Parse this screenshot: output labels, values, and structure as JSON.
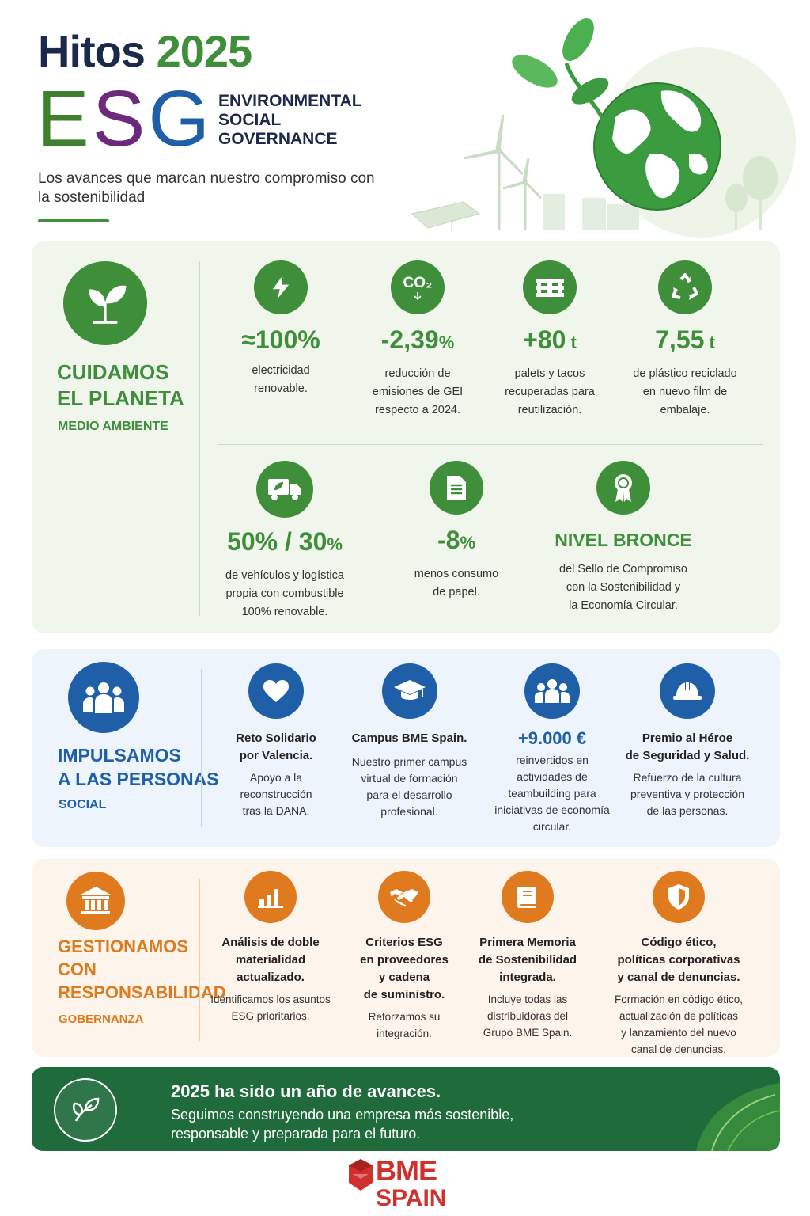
{
  "header": {
    "title_part1": "Hitos",
    "title_part2": "2025",
    "esg_e": "E",
    "esg_s": "S",
    "esg_g": "G",
    "esg_words": [
      "ENVIRONMENTAL",
      "SOCIAL",
      "GOVERNANCE"
    ],
    "subtitle": "Los avances que marcan nuestro compromiso con la sostenibilidad"
  },
  "environment": {
    "title_line1": "CUIDAMOS",
    "title_line2": "EL PLANETA",
    "subtitle": "MEDIO AMBIENTE",
    "icon": "plant-icon",
    "color": "#3e8e3a",
    "items": [
      {
        "value": "≈100%",
        "unit": "",
        "desc": [
          "electricidad",
          "renovable."
        ],
        "icon": "lightning-icon"
      },
      {
        "value": "-2,39",
        "unit": "%",
        "desc": [
          "reducción de",
          "emisiones de GEI",
          "respecto a 2024."
        ],
        "icon": "co2-icon",
        "icon_text": "CO₂"
      },
      {
        "value": "+80",
        "unit": " t",
        "desc": [
          "palets y tacos",
          "recuperadas para",
          "reutilización."
        ],
        "icon": "pallet-icon"
      },
      {
        "value": "7,55",
        "unit": " t",
        "desc": [
          "de plástico reciclado",
          "en nuevo film de",
          "embalaje."
        ],
        "icon": "recycle-icon"
      },
      {
        "value": "50% / 30",
        "unit": "%",
        "desc": [
          "de vehículos y logística",
          "propia con combustible",
          "100% renovable."
        ],
        "icon": "truck-icon"
      },
      {
        "value": "-8",
        "unit": "%",
        "desc": [
          "menos consumo",
          "de papel."
        ],
        "icon": "document-icon"
      },
      {
        "value": "NIVEL BRONCE",
        "unit": "",
        "desc": [
          "del Sello de Compromiso",
          "con la Sostenibilidad y",
          "la Economía Circular."
        ],
        "icon": "medal-icon"
      }
    ]
  },
  "social": {
    "title_line1": "IMPULSAMOS",
    "title_line2": "A LAS PERSONAS",
    "subtitle": "SOCIAL",
    "icon": "people-icon",
    "color": "#1f5fa8",
    "items": [
      {
        "title": [
          "Reto Solidario",
          "por Valencia."
        ],
        "desc": [
          "Apoyo a la",
          "reconstrucción",
          "tras la DANA."
        ],
        "icon": "heart-icon"
      },
      {
        "title": [
          "Campus BME Spain."
        ],
        "desc": [
          "Nuestro primer campus",
          "virtual de formación",
          "para el desarrollo",
          "profesional."
        ],
        "icon": "graduation-cap-icon"
      },
      {
        "title": [
          "+9.000 €"
        ],
        "desc": [
          "reinvertidos en",
          "actividades de",
          "teambuilding para",
          "iniciativas de economía",
          "circular."
        ],
        "icon": "group-icon"
      },
      {
        "title": [
          "Premio al Héroe",
          "de Seguridad y Salud."
        ],
        "desc": [
          "Refuerzo de la cultura",
          "preventiva y protección",
          "de las personas."
        ],
        "icon": "helmet-icon"
      }
    ]
  },
  "governance": {
    "title_line1": "GESTIONAMOS",
    "title_line2": "CON",
    "title_line3": "RESPONSABILIDAD",
    "subtitle": "GOBERNANZA",
    "icon": "institution-icon",
    "color": "#e07a1f",
    "items": [
      {
        "title": [
          "Análisis de doble",
          "materialidad",
          "actualizado."
        ],
        "desc": [
          "Identificamos los asuntos",
          "ESG prioritarios."
        ],
        "icon": "bar-chart-icon"
      },
      {
        "title": [
          "Criterios ESG",
          "en proveedores",
          "y cadena",
          "de suministro."
        ],
        "desc": [
          "Reforzamos su",
          "integración."
        ],
        "icon": "handshake-icon"
      },
      {
        "title": [
          "Primera Memoria",
          "de Sostenibilidad",
          "integrada."
        ],
        "desc": [
          "Incluye todas las",
          "distribuidoras del",
          "Grupo BME Spain."
        ],
        "icon": "book-icon"
      },
      {
        "title": [
          "Código ético,",
          "políticas corporativas",
          "y canal de denuncias."
        ],
        "desc": [
          "Formación en código ético,",
          "actualización de políticas",
          "y lanzamiento del nuevo",
          "canal de denuncias."
        ],
        "icon": "shield-icon"
      }
    ]
  },
  "footer": {
    "title": "2025 ha sido un año de avances.",
    "line1": "Seguimos construyendo una empresa más sostenible,",
    "line2": "responsable y preparada para el futuro.",
    "icon": "leaf-icon"
  },
  "logo": {
    "line1": "BME",
    "line2": "SPAIN",
    "color": "#d0312d"
  }
}
